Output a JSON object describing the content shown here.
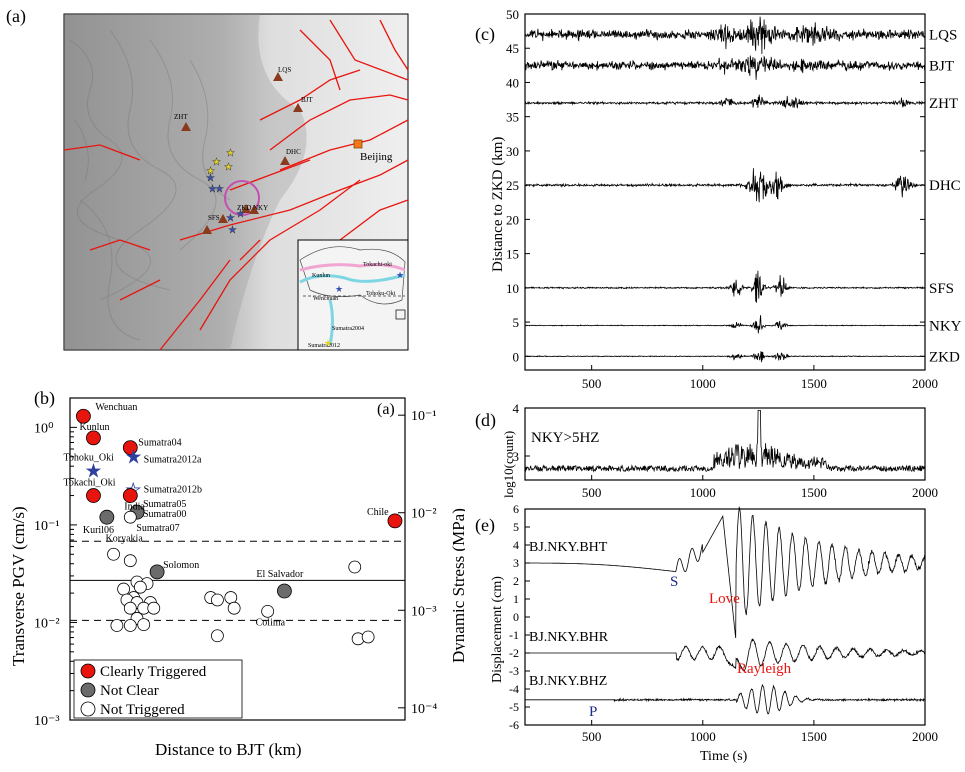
{
  "panels": {
    "a": {
      "label": "(a)",
      "stations": [
        {
          "code": "LQS",
          "color": "#8a3b1e"
        },
        {
          "code": "BJT",
          "color": "#8a3b1e"
        },
        {
          "code": "ZHT",
          "color": "#8a3b1e"
        },
        {
          "code": "DHC",
          "color": "#8a3b1e"
        },
        {
          "code": "ZKD",
          "color": "#8a3b1e"
        },
        {
          "code": "NKY",
          "color": "#8a3b1e"
        },
        {
          "code": "SFS",
          "color": "#8a3b1e"
        }
      ],
      "city": "Beijing",
      "inset_labels": [
        "Kunlun",
        "Tokachi-oki",
        "Tohoku-Oki",
        "Wenchuan",
        "Sumatra2004",
        "Sumatra2012"
      ]
    },
    "b": {
      "label": "(b)",
      "inner_label": "(a)"
    },
    "c": {
      "label": "(c)"
    },
    "d": {
      "label": "(d)",
      "annotation": "NKY>5HZ"
    },
    "e": {
      "label": "(e)"
    }
  },
  "chart_data": [
    {
      "id": "b",
      "type": "scatter",
      "xlabel": "Distance to BJT (km)",
      "ylabel": "Transverse PGV (cm/s)",
      "ylabel_right": "Dynamic Stress (MPa)",
      "yscale": "log",
      "ylim": [
        0.001,
        2
      ],
      "y_ticks": [
        "10⁻³",
        "10⁻²",
        "10⁻¹",
        "10⁰"
      ],
      "y_right_ticks": [
        "10⁻⁴",
        "10⁻³",
        "10⁻²",
        "10⁻¹"
      ],
      "hlines": [
        {
          "y": 0.068,
          "style": "dashed"
        },
        {
          "y": 0.027,
          "style": "solid"
        },
        {
          "y": 0.0105,
          "style": "dashed"
        }
      ],
      "legend": [
        {
          "label": "Clearly Triggered",
          "color": "#e8150f"
        },
        {
          "label": "Not Clear",
          "color": "#6b6b6b"
        },
        {
          "label": "Not Triggered",
          "color": "#ffffff"
        }
      ],
      "points": [
        {
          "name": "Wenchuan",
          "x": 0.04,
          "pgv": 1.3,
          "cls": "red"
        },
        {
          "name": "Kunlun",
          "x": 0.07,
          "pgv": 0.78,
          "cls": "red"
        },
        {
          "name": "Sumatra04",
          "x": 0.18,
          "pgv": 0.62,
          "cls": "red"
        },
        {
          "name": "Sumatra2012a",
          "x": 0.19,
          "pgv": 0.5,
          "cls": "blue-star"
        },
        {
          "name": "Tohoku_Oki",
          "x": 0.07,
          "pgv": 0.36,
          "cls": "blue-star"
        },
        {
          "name": "Tokachi_Oki",
          "x": 0.07,
          "pgv": 0.2,
          "cls": "red"
        },
        {
          "name": "Sumatra2012b",
          "x": 0.19,
          "pgv": 0.23,
          "cls": "blue-star-open"
        },
        {
          "name": "India",
          "x": 0.18,
          "pgv": 0.2,
          "cls": "red"
        },
        {
          "name": "Sumatra05",
          "x": 0.18,
          "pgv": 0.2,
          "cls": "none"
        },
        {
          "name": "Kuril06",
          "x": 0.11,
          "pgv": 0.12,
          "cls": "grey"
        },
        {
          "name": "Sumatra00",
          "x": 0.2,
          "pgv": 0.135,
          "cls": "grey"
        },
        {
          "name": "Sumatra07",
          "x": 0.18,
          "pgv": 0.12,
          "cls": "open"
        },
        {
          "name": "Chile",
          "x": 0.97,
          "pgv": 0.11,
          "cls": "red"
        },
        {
          "name": "Koryakia",
          "x": 0.13,
          "pgv": 0.05,
          "cls": "open"
        },
        {
          "name": "Solomon",
          "x": 0.26,
          "pgv": 0.033,
          "cls": "grey"
        },
        {
          "name": "El Salvador",
          "x": 0.64,
          "pgv": 0.021,
          "cls": "grey"
        },
        {
          "name": "Colima",
          "x": 0.59,
          "pgv": 0.013,
          "cls": "open"
        }
      ],
      "open_points": [
        [
          0.18,
          0.043
        ],
        [
          0.85,
          0.037
        ],
        [
          0.2,
          0.026
        ],
        [
          0.23,
          0.025
        ],
        [
          0.16,
          0.022
        ],
        [
          0.21,
          0.023
        ],
        [
          0.19,
          0.018
        ],
        [
          0.17,
          0.017
        ],
        [
          0.2,
          0.016
        ],
        [
          0.24,
          0.016
        ],
        [
          0.22,
          0.014
        ],
        [
          0.18,
          0.014
        ],
        [
          0.25,
          0.014
        ],
        [
          0.42,
          0.018
        ],
        [
          0.44,
          0.017
        ],
        [
          0.48,
          0.018
        ],
        [
          0.49,
          0.014
        ],
        [
          0.2,
          0.011
        ],
        [
          0.14,
          0.0093
        ],
        [
          0.18,
          0.0093
        ],
        [
          0.22,
          0.0095
        ],
        [
          0.44,
          0.0073
        ],
        [
          0.86,
          0.0068
        ],
        [
          0.89,
          0.0071
        ]
      ]
    },
    {
      "id": "c",
      "type": "line",
      "xlabel": "",
      "ylabel": "Distance to ZKD (km)",
      "xlim": [
        200,
        2000
      ],
      "ylim": [
        -2,
        50
      ],
      "x_ticks": [
        500,
        1000,
        1500,
        2000
      ],
      "y_ticks": [
        0,
        5,
        10,
        15,
        20,
        25,
        30,
        35,
        40,
        45,
        50
      ],
      "traces": [
        {
          "station": "LQS",
          "offset": 47,
          "amp": 3.2,
          "noise": 1.0
        },
        {
          "station": "BJT",
          "offset": 42.5,
          "amp": 1.8,
          "noise": 0.9
        },
        {
          "station": "ZHT",
          "offset": 37,
          "amp": 1.6,
          "noise": 0.25
        },
        {
          "station": "DHC",
          "offset": 25,
          "amp": 3.5,
          "noise": 0.25
        },
        {
          "station": "SFS",
          "offset": 10,
          "amp": 5,
          "noise": 0.15
        },
        {
          "station": "NKY",
          "offset": 4.5,
          "amp": 2,
          "noise": 0.08
        },
        {
          "station": "ZKD",
          "offset": 0,
          "amp": 2,
          "noise": 0.08
        }
      ]
    },
    {
      "id": "d",
      "type": "line",
      "xlabel": "",
      "ylabel": "log10(count)",
      "xlim": [
        200,
        2000
      ],
      "ylim": [
        2.5,
        4
      ],
      "x_ticks": [
        500,
        1000,
        1500,
        2000
      ],
      "y_ticks": [
        3,
        4
      ]
    },
    {
      "id": "e",
      "type": "line",
      "xlabel": "Time (s)",
      "ylabel": "Displacement (cm)",
      "xlim": [
        200,
        2000
      ],
      "ylim": [
        -6,
        6
      ],
      "x_ticks": [
        500,
        1000,
        1500,
        2000
      ],
      "y_ticks": [
        -6,
        -5,
        -4,
        -3,
        -2,
        -1,
        0,
        1,
        2,
        3,
        4,
        5,
        6
      ],
      "traces": [
        {
          "name": "BJ.NKY.BHT",
          "offset": 3
        },
        {
          "name": "BJ.NKY.BHR",
          "offset": -2
        },
        {
          "name": "BJ.NKY.BHZ",
          "offset": -4.6
        }
      ],
      "phases": [
        {
          "label": "S",
          "color": "#1a2a8a"
        },
        {
          "label": "Love",
          "color": "#e8150f"
        },
        {
          "label": "Rayleigh",
          "color": "#e8150f"
        },
        {
          "label": "P",
          "color": "#1a2a8a"
        }
      ]
    }
  ]
}
